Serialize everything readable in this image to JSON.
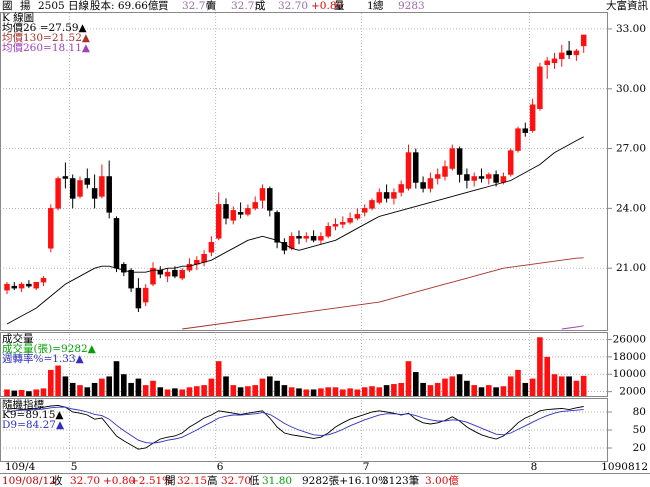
{
  "header": [
    {
      "text": "國",
      "color": "#000"
    },
    {
      "text": "揚",
      "color": "#000"
    },
    {
      "text": "2505 日線",
      "color": "#000"
    },
    {
      "text": "股本: 69.66億",
      "color": "#000"
    },
    {
      "text": "買",
      "color": "#000"
    },
    {
      "text": "32.70",
      "color": "#9a6aa8"
    },
    {
      "text": "賣",
      "color": "#000"
    },
    {
      "text": "32.75",
      "color": "#9a6aa8"
    },
    {
      "text": "成",
      "color": "#000"
    },
    {
      "text": "32.70",
      "color": "#9a6aa8"
    },
    {
      "text": "+0.80",
      "color": "#e00000"
    },
    {
      "text": "量",
      "color": "#000"
    },
    {
      "text": "1",
      "color": "#000"
    },
    {
      "text": "總",
      "color": "#000"
    },
    {
      "text": "9283",
      "color": "#9a6aa8"
    },
    {
      "text": "大富資訊",
      "color": "#000"
    }
  ],
  "footer": [
    {
      "text": "109/08/12",
      "color": "#c00000"
    },
    {
      "text": "收",
      "color": "#000"
    },
    {
      "text": "32.70",
      "color": "#e00000"
    },
    {
      "text": "+0.80",
      "color": "#e00000"
    },
    {
      "text": "+2.51%",
      "color": "#e00000"
    },
    {
      "text": "開",
      "color": "#000"
    },
    {
      "text": "32.15",
      "color": "#e00000"
    },
    {
      "text": "高",
      "color": "#000"
    },
    {
      "text": "32.70",
      "color": "#e00000"
    },
    {
      "text": "低",
      "color": "#000"
    },
    {
      "text": "31.80",
      "color": "#00a000"
    },
    {
      "text": "9282張+16.10%",
      "color": "#000"
    },
    {
      "text": "3123筆",
      "color": "#000"
    },
    {
      "text": "3.00億",
      "color": "#e00000"
    }
  ],
  "chart_data": [
    {
      "type": "candlestick",
      "title": "K 線圖",
      "categories": [
        "109/4",
        null,
        null,
        null,
        null,
        null,
        null,
        null,
        null,
        "5",
        null,
        null,
        null,
        null,
        null,
        null,
        null,
        null,
        null,
        null,
        null,
        null,
        null,
        null,
        null,
        null,
        null,
        null,
        null,
        "6",
        null,
        null,
        null,
        null,
        null,
        null,
        null,
        null,
        null,
        null,
        null,
        null,
        null,
        null,
        null,
        null,
        null,
        null,
        null,
        "7",
        null,
        null,
        null,
        null,
        null,
        null,
        null,
        null,
        null,
        null,
        null,
        null,
        null,
        null,
        null,
        null,
        null,
        null,
        null,
        null,
        null,
        null,
        "8",
        null,
        null,
        null,
        null,
        null,
        null,
        "1090812"
      ],
      "open": [
        19.9,
        20.1,
        20.0,
        20.2,
        20.0,
        20.3,
        22.0,
        24.0,
        25.6,
        25.5,
        24.6,
        25.5,
        25.0,
        24.6,
        25.6,
        23.5,
        21.2,
        20.9,
        20.0,
        19.3,
        20.2,
        20.9,
        20.6,
        20.9,
        20.5,
        20.9,
        21.2,
        21.3,
        21.8,
        22.5,
        24.2,
        23.4,
        23.8,
        23.7,
        24.0,
        24.4,
        25.0,
        23.8,
        22.3,
        22.0,
        22.6,
        22.5,
        22.6,
        22.4,
        22.6,
        23.1,
        23.2,
        23.3,
        23.5,
        23.8,
        24.0,
        24.3,
        24.8,
        24.5,
        24.8,
        25.0,
        26.8,
        25.3,
        25.0,
        25.5,
        25.6,
        26.0,
        27.0,
        25.7,
        25.4,
        25.6,
        25.5,
        25.7,
        25.3,
        25.7,
        26.9,
        28.0,
        27.9,
        29.0,
        31.2,
        31.3,
        31.5,
        31.9,
        31.7,
        32.15
      ],
      "high": [
        20.3,
        20.3,
        20.3,
        20.4,
        20.3,
        20.6,
        24.2,
        25.6,
        26.3,
        25.7,
        25.6,
        26.0,
        25.7,
        26.2,
        26.4,
        23.6,
        21.3,
        21.0,
        20.5,
        20.2,
        21.3,
        21.1,
        21.0,
        21.1,
        21.0,
        21.5,
        21.6,
        21.9,
        22.6,
        24.8,
        24.5,
        24.1,
        24.3,
        24.2,
        24.6,
        25.2,
        25.1,
        23.9,
        22.5,
        22.8,
        22.9,
        22.8,
        22.9,
        22.8,
        23.3,
        23.5,
        23.6,
        23.8,
        24.0,
        24.2,
        24.5,
        25.0,
        25.2,
        25.0,
        25.4,
        27.2,
        27.0,
        25.6,
        25.8,
        26.0,
        26.4,
        27.2,
        27.1,
        26.0,
        25.8,
        26.0,
        25.8,
        25.9,
        25.8,
        27.0,
        28.1,
        28.3,
        29.5,
        31.3,
        31.6,
        31.8,
        32.2,
        32.4,
        32.0,
        32.7
      ],
      "low": [
        19.7,
        19.9,
        19.8,
        20.0,
        19.9,
        20.1,
        21.8,
        23.9,
        25.0,
        24.0,
        24.5,
        25.0,
        24.0,
        24.5,
        23.5,
        20.8,
        20.6,
        19.8,
        18.8,
        19.1,
        20.1,
        20.5,
        20.3,
        20.5,
        20.4,
        20.8,
        20.9,
        21.1,
        21.6,
        22.4,
        23.2,
        23.2,
        23.5,
        23.6,
        23.9,
        24.0,
        23.6,
        22.0,
        21.7,
        21.9,
        22.2,
        22.3,
        22.3,
        22.2,
        22.5,
        22.9,
        23.0,
        23.2,
        23.4,
        23.6,
        23.9,
        24.2,
        24.3,
        24.2,
        24.6,
        24.9,
        25.0,
        24.8,
        24.8,
        25.2,
        25.4,
        25.9,
        25.3,
        25.0,
        25.1,
        25.3,
        25.2,
        25.1,
        25.2,
        25.6,
        26.8,
        27.6,
        27.8,
        28.9,
        30.5,
        31.0,
        31.1,
        31.5,
        31.4,
        31.8
      ],
      "close": [
        20.2,
        20.0,
        20.2,
        20.1,
        20.3,
        20.5,
        24.0,
        25.5,
        25.5,
        24.5,
        25.4,
        25.2,
        24.5,
        25.6,
        23.8,
        21.0,
        20.8,
        20.0,
        19.0,
        20.0,
        21.0,
        20.7,
        20.8,
        20.6,
        20.9,
        21.2,
        21.4,
        21.7,
        22.3,
        24.2,
        23.5,
        23.9,
        23.7,
        24.0,
        24.3,
        25.0,
        23.9,
        22.3,
        21.9,
        22.6,
        22.5,
        22.6,
        22.4,
        22.6,
        23.1,
        23.2,
        23.3,
        23.5,
        23.7,
        24.0,
        24.4,
        24.8,
        24.5,
        24.8,
        25.2,
        26.8,
        25.3,
        25.0,
        25.5,
        25.7,
        26.1,
        27.0,
        25.7,
        25.4,
        25.6,
        25.5,
        25.7,
        25.3,
        25.6,
        26.9,
        28.0,
        27.8,
        29.2,
        31.1,
        31.4,
        31.5,
        31.8,
        31.7,
        31.9,
        32.7
      ],
      "up_color": "#ff1010",
      "down_color": "#000000",
      "ylim": [
        17.9,
        33.8
      ],
      "yticks": [
        {
          "value": 21,
          "label": "21.00"
        },
        {
          "value": 24,
          "label": "24.00"
        },
        {
          "value": 27,
          "label": "27.00"
        },
        {
          "value": 30,
          "label": "30.00"
        },
        {
          "value": 33,
          "label": "33.00"
        }
      ],
      "grid": true,
      "series": [
        {
          "name": "均價26 =27.59▲",
          "color": "#000000",
          "values": [
            18.2,
            18.4,
            18.6,
            18.8,
            19.0,
            19.3,
            19.6,
            19.9,
            20.2,
            20.4,
            20.6,
            20.8,
            21.0,
            21.1,
            21.1,
            21.0,
            20.9,
            20.8,
            20.8,
            20.8,
            20.9,
            20.9,
            21.0,
            21.0,
            21.1,
            21.1,
            21.2,
            21.3,
            21.4,
            21.6,
            21.8,
            22.0,
            22.2,
            22.4,
            22.5,
            22.6,
            22.5,
            22.4,
            22.2,
            22.0,
            21.9,
            22.0,
            22.1,
            22.2,
            22.3,
            22.4,
            22.6,
            22.8,
            23.0,
            23.2,
            23.4,
            23.6,
            23.7,
            23.8,
            23.9,
            24.0,
            24.1,
            24.2,
            24.3,
            24.4,
            24.5,
            24.6,
            24.7,
            24.8,
            24.9,
            25.0,
            25.1,
            25.2,
            25.3,
            25.4,
            25.6,
            25.8,
            26.0,
            26.2,
            26.5,
            26.8,
            27.0,
            27.2,
            27.4,
            27.59
          ]
        },
        {
          "name": "均價130=21.52▲",
          "color": "#a83228",
          "values": [
            null,
            null,
            null,
            null,
            null,
            null,
            null,
            null,
            null,
            null,
            null,
            null,
            null,
            null,
            null,
            null,
            null,
            null,
            null,
            null,
            null,
            null,
            null,
            null,
            17.95,
            18.0,
            18.05,
            18.1,
            18.15,
            18.2,
            18.25,
            18.3,
            18.35,
            18.4,
            18.45,
            18.5,
            18.55,
            18.6,
            18.65,
            18.7,
            18.75,
            18.8,
            18.85,
            18.9,
            18.95,
            19.0,
            19.05,
            19.1,
            19.15,
            19.2,
            19.25,
            19.3,
            19.4,
            19.5,
            19.6,
            19.7,
            19.8,
            19.9,
            20.0,
            20.1,
            20.2,
            20.3,
            20.4,
            20.5,
            20.6,
            20.7,
            20.8,
            20.9,
            21.0,
            21.05,
            21.1,
            21.15,
            21.2,
            21.25,
            21.3,
            21.35,
            21.4,
            21.45,
            21.5,
            21.52
          ]
        },
        {
          "name": "均價260=18.11▲",
          "color": "#a040c0",
          "values": [
            null,
            null,
            null,
            null,
            null,
            null,
            null,
            null,
            null,
            null,
            null,
            null,
            null,
            null,
            null,
            null,
            null,
            null,
            null,
            null,
            null,
            null,
            null,
            null,
            null,
            null,
            null,
            null,
            null,
            null,
            null,
            null,
            null,
            null,
            null,
            null,
            null,
            null,
            null,
            null,
            null,
            null,
            null,
            null,
            null,
            null,
            null,
            null,
            null,
            null,
            null,
            null,
            null,
            null,
            null,
            null,
            null,
            null,
            null,
            null,
            null,
            null,
            null,
            null,
            null,
            null,
            null,
            null,
            null,
            null,
            null,
            null,
            null,
            null,
            null,
            null,
            17.95,
            18.0,
            18.05,
            18.11
          ]
        }
      ]
    },
    {
      "type": "volume",
      "title": "成交量",
      "legend": [
        {
          "text": "成交量(張)=9282▲",
          "color": "#00a000"
        },
        {
          "text": "週轉率%=1.33▲",
          "color": "#3030c0"
        }
      ],
      "values": [
        3000,
        2500,
        2800,
        2200,
        3000,
        3500,
        12000,
        14000,
        9000,
        6000,
        5000,
        4000,
        6000,
        8000,
        9000,
        16000,
        10000,
        6000,
        8000,
        5000,
        7000,
        4000,
        3000,
        3500,
        3000,
        4000,
        4500,
        5000,
        8000,
        16000,
        9000,
        5000,
        4000,
        4500,
        5000,
        8000,
        9000,
        7000,
        5000,
        4000,
        3500,
        3000,
        3000,
        3500,
        4000,
        4000,
        3000,
        3500,
        3000,
        4000,
        4500,
        4000,
        5000,
        5500,
        6000,
        16000,
        11000,
        6000,
        5000,
        6000,
        8000,
        9000,
        10000,
        7000,
        5000,
        4000,
        5000,
        4000,
        4500,
        9000,
        12000,
        6000,
        8000,
        27000,
        18000,
        10000,
        9000,
        9000,
        7000,
        9282
      ],
      "ylim": [
        0,
        28500
      ],
      "yticks": [
        2000,
        10000,
        18000,
        26000
      ],
      "grid": true
    },
    {
      "type": "line",
      "title": "隨機指標",
      "series": [
        {
          "name": "K9=89.15▲",
          "color": "#000000",
          "values": [
            85,
            86,
            84,
            85,
            86,
            88,
            90,
            91,
            88,
            80,
            78,
            75,
            68,
            70,
            55,
            40,
            32,
            25,
            18,
            20,
            28,
            35,
            38,
            40,
            45,
            55,
            62,
            70,
            75,
            82,
            80,
            78,
            76,
            78,
            80,
            82,
            70,
            55,
            45,
            42,
            40,
            38,
            36,
            38,
            45,
            55,
            62,
            68,
            72,
            76,
            80,
            82,
            80,
            78,
            75,
            78,
            68,
            62,
            60,
            62,
            66,
            72,
            65,
            55,
            48,
            42,
            38,
            35,
            40,
            50,
            62,
            70,
            75,
            82,
            84,
            85,
            86,
            84,
            87,
            89.15
          ]
        },
        {
          "name": "D9=84.27▲",
          "color": "#3030c0",
          "values": [
            80,
            82,
            83,
            83,
            84,
            85,
            87,
            88,
            88,
            85,
            83,
            80,
            76,
            74,
            68,
            58,
            49,
            41,
            33,
            29,
            28,
            30,
            33,
            35,
            38,
            44,
            50,
            57,
            63,
            70,
            73,
            75,
            75,
            76,
            77,
            79,
            76,
            69,
            61,
            55,
            50,
            46,
            42,
            41,
            42,
            46,
            51,
            57,
            62,
            67,
            71,
            75,
            77,
            77,
            76,
            77,
            74,
            70,
            67,
            65,
            65,
            67,
            66,
            63,
            58,
            53,
            48,
            43,
            42,
            45,
            51,
            57,
            63,
            69,
            74,
            78,
            81,
            82,
            83,
            84.27
          ]
        }
      ],
      "ylim": [
        0,
        100
      ],
      "yticks": [
        20,
        50,
        80
      ],
      "grid": true
    }
  ]
}
